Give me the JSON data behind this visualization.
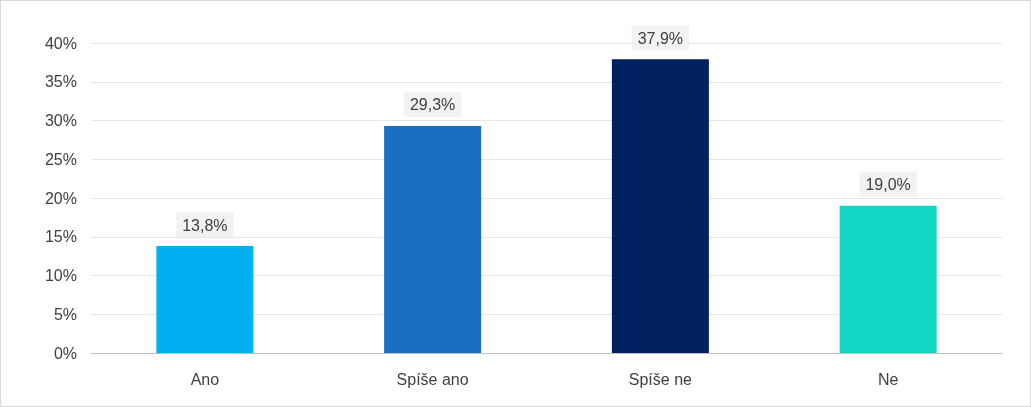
{
  "chart_data": {
    "type": "bar",
    "categories": [
      "Ano",
      "Spíše ano",
      "Spíše ne",
      "Ne"
    ],
    "values": [
      13.8,
      29.3,
      37.9,
      19.0
    ],
    "colors": [
      "#00b0f0",
      "#1a6ec4",
      "#002060",
      "#11d6c4"
    ],
    "value_labels": [
      "13,8%",
      "29,3%",
      "37,9%",
      "19,0%"
    ],
    "ylim": [
      0,
      40
    ],
    "yticks": [
      {
        "value": 0,
        "label": "0%"
      },
      {
        "value": 5,
        "label": "5%"
      },
      {
        "value": 10,
        "label": "10%"
      },
      {
        "value": 15,
        "label": "15%"
      },
      {
        "value": 20,
        "label": "20%"
      },
      {
        "value": 25,
        "label": "25%"
      },
      {
        "value": 30,
        "label": "30%"
      },
      {
        "value": 35,
        "label": "35%"
      },
      {
        "value": 40,
        "label": "40%"
      }
    ],
    "grid": "y"
  }
}
